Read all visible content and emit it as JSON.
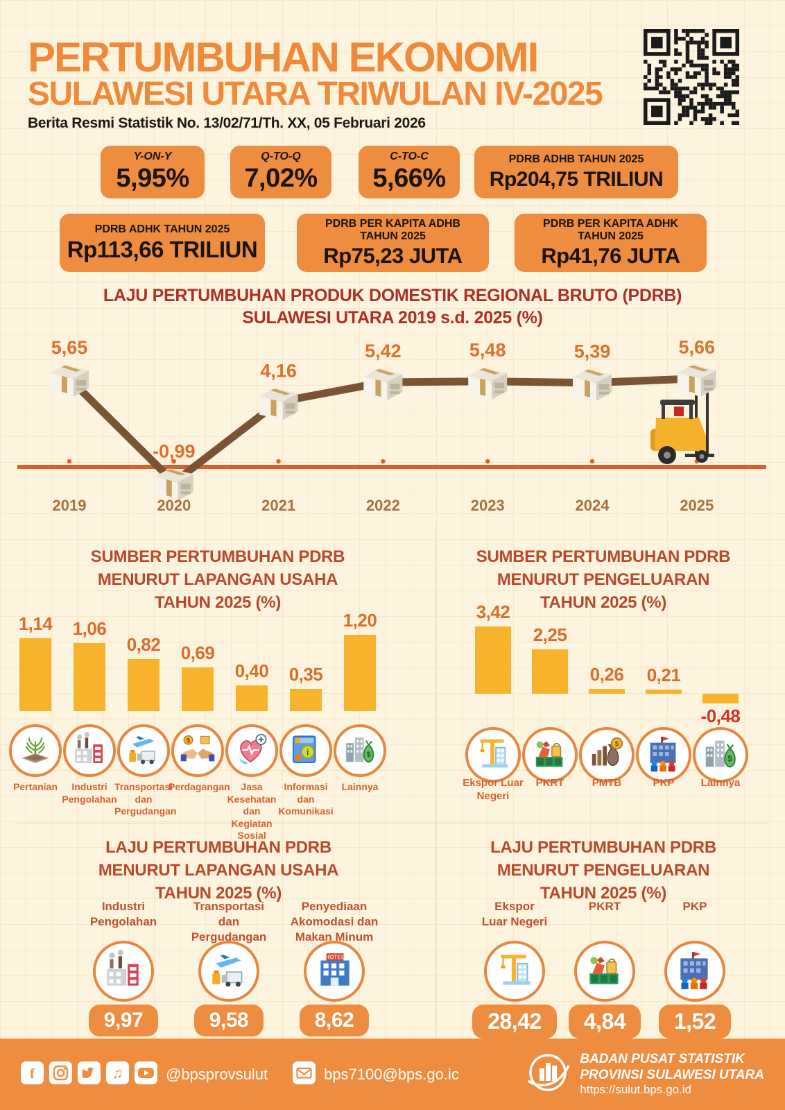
{
  "colors": {
    "background": "#fdf4df",
    "grid_line": "#f6e7c5",
    "accent_orange": "#ee8c3f",
    "title_orange": "#f0893a",
    "chart_title_red": "#ae2f26",
    "section_title_red": "#b8492c",
    "bar_yellow": "#f6b32b",
    "line_brown": "#7a5433",
    "axis_orange": "#d95f2b",
    "value_orange": "#d96e2b",
    "negative_red": "#d63127",
    "year_brown": "#a9713d"
  },
  "header": {
    "title_line1": "PERTUMBUHAN EKONOMI",
    "title_line2": "SULAWESI UTARA TRIWULAN IV-2025",
    "subtitle": "Berita Resmi Statistik No. 13/02/71/Th. XX, 05 Februari 2026"
  },
  "stat_boxes": {
    "row1": [
      {
        "label": "Y-ON-Y",
        "value": "5,95%",
        "italic": true
      },
      {
        "label": "Q-TO-Q",
        "value": "7,02%",
        "italic": true
      },
      {
        "label": "C-TO-C",
        "value": "5,66%",
        "italic": true
      },
      {
        "label": "PDRB ADHB TAHUN 2025",
        "value": "Rp204,75 TRILIUN",
        "italic": false
      }
    ],
    "row2": [
      {
        "label": "PDRB ADHK TAHUN 2025",
        "value": "Rp113,66 TRILIUN",
        "italic": false
      },
      {
        "label": "PDRB PER KAPITA ADHB\nTAHUN 2025",
        "value": "Rp75,23 JUTA",
        "italic": false
      },
      {
        "label": "PDRB PER KAPITA ADHK\nTAHUN 2025",
        "value": "Rp41,76 JUTA",
        "italic": false
      }
    ]
  },
  "chart_data": [
    {
      "id": "pdrb_line",
      "type": "line",
      "title_lines": [
        "LAJU PERTUMBUHAN PRODUK DOMESTIK REGIONAL BRUTO (PDRB)",
        "SULAWESI UTARA 2019 s.d. 2025 (%)"
      ],
      "categories": [
        "2019",
        "2020",
        "2021",
        "2022",
        "2023",
        "2024",
        "2025"
      ],
      "values": [
        5.65,
        -0.99,
        4.16,
        5.42,
        5.48,
        5.39,
        5.66
      ],
      "labels": [
        "5,65",
        "-0,99",
        "4,16",
        "5,42",
        "5,48",
        "5,39",
        "5,66"
      ],
      "ylim": [
        -2,
        7
      ],
      "grid": false,
      "marker": "cardboard-box-icon",
      "annotation": "forklift-icon"
    },
    {
      "id": "sumber_lapangan_usaha",
      "type": "bar",
      "title_lines": [
        "SUMBER PERTUMBUHAN PDRB",
        "MENURUT LAPANGAN USAHA",
        "TAHUN 2025 (%)"
      ],
      "categories": [
        "Pertanian",
        "Industri Pengolahan",
        "Transportasi dan Pergudangan",
        "Perdagangan",
        "Jasa Kesehatan dan Kegiatan Sosial",
        "Informasi dan Komunikasi",
        "Lainnya"
      ],
      "values": [
        1.14,
        1.06,
        0.82,
        0.69,
        0.4,
        0.35,
        1.2
      ],
      "labels": [
        "1,14",
        "1,06",
        "0,82",
        "0,69",
        "0,40",
        "0,35",
        "1,20"
      ],
      "icons": [
        "agriculture-icon",
        "factory-icon",
        "transport-icon",
        "handshake-icon",
        "health-icon",
        "infocom-icon",
        "city-money-icon"
      ]
    },
    {
      "id": "sumber_pengeluaran",
      "type": "bar",
      "title_lines": [
        "SUMBER PERTUMBUHAN PDRB",
        "MENURUT PENGELUARAN",
        "TAHUN 2025 (%)"
      ],
      "categories": [
        "Ekspor Luar Negeri",
        "PKRT",
        "PMTB",
        "PKP",
        "Lainnya"
      ],
      "values": [
        3.42,
        2.25,
        0.26,
        0.21,
        -0.48
      ],
      "labels": [
        "3,42",
        "2,25",
        "0,26",
        "0,21",
        "-0,48"
      ],
      "icons": [
        "crane-icon",
        "goods-icon",
        "investment-icon",
        "government-icon",
        "city-money-icon"
      ]
    }
  ],
  "growth_lapangan_usaha": {
    "title_lines": [
      "LAJU PERTUMBUHAN PDRB",
      "MENURUT LAPANGAN USAHA",
      "TAHUN 2025 (%)"
    ],
    "items": [
      {
        "label": "Industri\nPengolahan",
        "value": "9,97",
        "icon": "factory-icon"
      },
      {
        "label": "Transportasi\ndan\nPergudangan",
        "value": "9,58",
        "icon": "transport-icon"
      },
      {
        "label": "Penyediaan\nAkomodasi dan\nMakan Minum",
        "value": "8,62",
        "icon": "hotel-icon"
      }
    ]
  },
  "growth_pengeluaran": {
    "title_lines": [
      "LAJU PERTUMBUHAN PDRB",
      "MENURUT PENGELUARAN",
      "TAHUN 2025 (%)"
    ],
    "items": [
      {
        "label": "Ekspor\nLuar Negeri",
        "value": "28,42",
        "icon": "crane-icon"
      },
      {
        "label": "PKRT",
        "value": "4,84",
        "icon": "goods-icon"
      },
      {
        "label": "PKP",
        "value": "1,52",
        "icon": "government-icon"
      }
    ]
  },
  "footer": {
    "social_icons": [
      "facebook-icon",
      "instagram-icon",
      "twitter-icon",
      "tiktok-icon",
      "youtube-icon"
    ],
    "handle": "@bpsprovsulut",
    "email": "bps7100@bps.go.ic",
    "org_line1": "BADAN PUSAT STATISTIK",
    "org_line2": "PROVINSI SULAWESI UTARA",
    "url": "https://sulut.bps.go.id"
  }
}
